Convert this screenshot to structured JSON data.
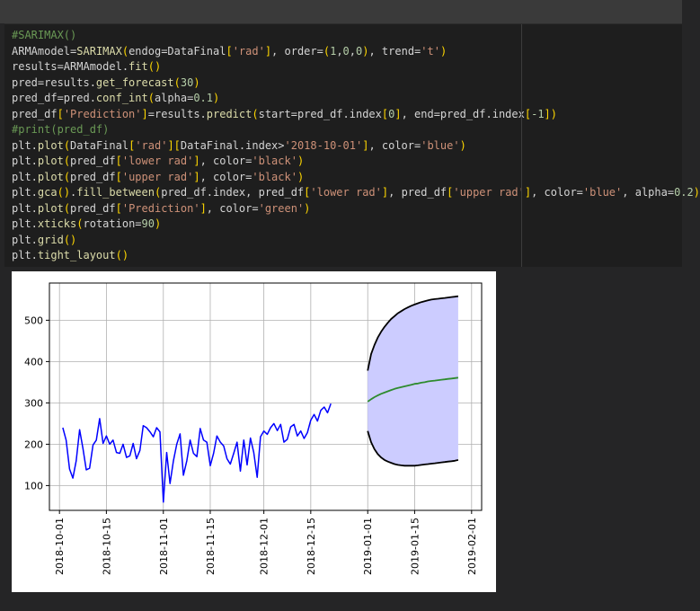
{
  "code_cell": {
    "lines": [
      [
        {
          "t": "#SARIMAX()",
          "c": "comment"
        }
      ],
      [
        {
          "t": "ARMAmodel",
          "c": "var"
        },
        {
          "t": "=",
          "c": "var"
        },
        {
          "t": "SARIMAX",
          "c": "fn"
        },
        {
          "t": "(",
          "c": "br"
        },
        {
          "t": "endog=DataFinal",
          "c": "var"
        },
        {
          "t": "[",
          "c": "br"
        },
        {
          "t": "'rad'",
          "c": "str"
        },
        {
          "t": "]",
          "c": "br"
        },
        {
          "t": ", order=",
          "c": "var"
        },
        {
          "t": "(",
          "c": "br"
        },
        {
          "t": "1",
          "c": "num"
        },
        {
          "t": ",",
          "c": "var"
        },
        {
          "t": "0",
          "c": "num"
        },
        {
          "t": ",",
          "c": "var"
        },
        {
          "t": "0",
          "c": "num"
        },
        {
          "t": ")",
          "c": "br"
        },
        {
          "t": ", trend=",
          "c": "var"
        },
        {
          "t": "'t'",
          "c": "str"
        },
        {
          "t": ")",
          "c": "br"
        }
      ],
      [
        {
          "t": "results=ARMAmodel.",
          "c": "var"
        },
        {
          "t": "fit",
          "c": "fn"
        },
        {
          "t": "()",
          "c": "br"
        }
      ],
      [
        {
          "t": "pred=results.",
          "c": "var"
        },
        {
          "t": "get_forecast",
          "c": "fn"
        },
        {
          "t": "(",
          "c": "br"
        },
        {
          "t": "30",
          "c": "num"
        },
        {
          "t": ")",
          "c": "br"
        }
      ],
      [
        {
          "t": "pred_df=pred.",
          "c": "var"
        },
        {
          "t": "conf_int",
          "c": "fn"
        },
        {
          "t": "(",
          "c": "br"
        },
        {
          "t": "alpha=",
          "c": "var"
        },
        {
          "t": "0.1",
          "c": "num"
        },
        {
          "t": ")",
          "c": "br"
        }
      ],
      [
        {
          "t": "pred_df",
          "c": "var"
        },
        {
          "t": "[",
          "c": "br"
        },
        {
          "t": "'Prediction'",
          "c": "str"
        },
        {
          "t": "]",
          "c": "br"
        },
        {
          "t": "=results.",
          "c": "var"
        },
        {
          "t": "predict",
          "c": "fn"
        },
        {
          "t": "(",
          "c": "br"
        },
        {
          "t": "start=pred_df.index",
          "c": "var"
        },
        {
          "t": "[",
          "c": "br"
        },
        {
          "t": "0",
          "c": "num"
        },
        {
          "t": "]",
          "c": "br"
        },
        {
          "t": ", end=pred_df.index",
          "c": "var"
        },
        {
          "t": "[",
          "c": "br"
        },
        {
          "t": "-1",
          "c": "num"
        },
        {
          "t": "]",
          "c": "br"
        },
        {
          "t": ")",
          "c": "br"
        }
      ],
      [
        {
          "t": "#print(pred_df)",
          "c": "comment"
        }
      ],
      [
        {
          "t": "plt.",
          "c": "var"
        },
        {
          "t": "plot",
          "c": "fn"
        },
        {
          "t": "(",
          "c": "br"
        },
        {
          "t": "DataFinal",
          "c": "var"
        },
        {
          "t": "[",
          "c": "br"
        },
        {
          "t": "'rad'",
          "c": "str"
        },
        {
          "t": "]",
          "c": "br"
        },
        {
          "t": "[",
          "c": "br"
        },
        {
          "t": "DataFinal.index>",
          "c": "var"
        },
        {
          "t": "'2018-10-01'",
          "c": "str"
        },
        {
          "t": "]",
          "c": "br"
        },
        {
          "t": ", color=",
          "c": "var"
        },
        {
          "t": "'blue'",
          "c": "str"
        },
        {
          "t": ")",
          "c": "br"
        }
      ],
      [
        {
          "t": "plt.",
          "c": "var"
        },
        {
          "t": "plot",
          "c": "fn"
        },
        {
          "t": "(",
          "c": "br"
        },
        {
          "t": "pred_df",
          "c": "var"
        },
        {
          "t": "[",
          "c": "br"
        },
        {
          "t": "'lower rad'",
          "c": "str"
        },
        {
          "t": "]",
          "c": "br"
        },
        {
          "t": ", color=",
          "c": "var"
        },
        {
          "t": "'black'",
          "c": "str"
        },
        {
          "t": ")",
          "c": "br"
        }
      ],
      [
        {
          "t": "plt.",
          "c": "var"
        },
        {
          "t": "plot",
          "c": "fn"
        },
        {
          "t": "(",
          "c": "br"
        },
        {
          "t": "pred_df",
          "c": "var"
        },
        {
          "t": "[",
          "c": "br"
        },
        {
          "t": "'upper rad'",
          "c": "str"
        },
        {
          "t": "]",
          "c": "br"
        },
        {
          "t": ", color=",
          "c": "var"
        },
        {
          "t": "'black'",
          "c": "str"
        },
        {
          "t": ")",
          "c": "br"
        }
      ],
      [
        {
          "t": "plt.",
          "c": "var"
        },
        {
          "t": "gca",
          "c": "fn"
        },
        {
          "t": "()",
          "c": "br"
        },
        {
          "t": ".",
          "c": "var"
        },
        {
          "t": "fill_between",
          "c": "fn"
        },
        {
          "t": "(",
          "c": "br"
        },
        {
          "t": "pred_df.index, pred_df",
          "c": "var"
        },
        {
          "t": "[",
          "c": "br"
        },
        {
          "t": "'lower rad'",
          "c": "str"
        },
        {
          "t": "]",
          "c": "br"
        },
        {
          "t": ", pred_df",
          "c": "var"
        },
        {
          "t": "[",
          "c": "br"
        },
        {
          "t": "'upper rad'",
          "c": "str"
        },
        {
          "t": "]",
          "c": "br"
        },
        {
          "t": ", color=",
          "c": "var"
        },
        {
          "t": "'blue'",
          "c": "str"
        },
        {
          "t": ", alpha=",
          "c": "var"
        },
        {
          "t": "0.2",
          "c": "num"
        },
        {
          "t": ")",
          "c": "br"
        }
      ],
      [
        {
          "t": "plt.",
          "c": "var"
        },
        {
          "t": "plot",
          "c": "fn"
        },
        {
          "t": "(",
          "c": "br"
        },
        {
          "t": "pred_df",
          "c": "var"
        },
        {
          "t": "[",
          "c": "br"
        },
        {
          "t": "'Prediction'",
          "c": "str"
        },
        {
          "t": "]",
          "c": "br"
        },
        {
          "t": ", color=",
          "c": "var"
        },
        {
          "t": "'green'",
          "c": "str"
        },
        {
          "t": ")",
          "c": "br"
        }
      ],
      [
        {
          "t": "plt.",
          "c": "var"
        },
        {
          "t": "xticks",
          "c": "fn"
        },
        {
          "t": "(",
          "c": "br"
        },
        {
          "t": "rotation=",
          "c": "var"
        },
        {
          "t": "90",
          "c": "num"
        },
        {
          "t": ")",
          "c": "br"
        }
      ],
      [
        {
          "t": "plt.",
          "c": "var"
        },
        {
          "t": "grid",
          "c": "fn"
        },
        {
          "t": "()",
          "c": "br"
        }
      ],
      [
        {
          "t": "plt.",
          "c": "var"
        },
        {
          "t": "tight_layout",
          "c": "fn"
        },
        {
          "t": "()",
          "c": "br"
        }
      ]
    ]
  },
  "chart_data": {
    "type": "line",
    "ylim": [
      40,
      590
    ],
    "xlim": [
      "2018-09-28",
      "2019-02-04"
    ],
    "yticks": [
      100,
      200,
      300,
      400,
      500
    ],
    "xticks": [
      "2018-10-01",
      "2018-10-15",
      "2018-11-01",
      "2018-11-15",
      "2018-12-01",
      "2018-12-15",
      "2019-01-01",
      "2019-01-15",
      "2019-02-01"
    ],
    "grid": true,
    "series": [
      {
        "role": "observed",
        "color": "#0000ff",
        "start": "2018-10-02",
        "values": [
          240,
          210,
          140,
          118,
          160,
          235,
          190,
          138,
          142,
          198,
          210,
          262,
          202,
          220,
          200,
          210,
          180,
          178,
          200,
          168,
          172,
          202,
          165,
          185,
          245,
          240,
          230,
          218,
          240,
          230,
          60,
          180,
          105,
          160,
          200,
          225,
          125,
          160,
          210,
          178,
          170,
          238,
          210,
          205,
          148,
          178,
          220,
          205,
          196,
          165,
          152,
          178,
          205,
          135,
          210,
          150,
          215,
          180,
          120,
          218,
          232,
          224,
          240,
          250,
          233,
          248,
          205,
          212,
          242,
          248,
          220,
          232,
          214,
          228,
          258,
          272,
          256,
          282,
          290,
          276,
          298
        ]
      },
      {
        "role": "upper",
        "color": "#000000",
        "start": "2019-01-01",
        "values": [
          378,
          418,
          440,
          458,
          472,
          484,
          494,
          503,
          510,
          517,
          522,
          527,
          531,
          535,
          538,
          541,
          544,
          546,
          548,
          550,
          551,
          552,
          553,
          554,
          555,
          556,
          557,
          558
        ]
      },
      {
        "role": "lower",
        "color": "#000000",
        "start": "2019-01-01",
        "values": [
          232,
          205,
          188,
          176,
          168,
          162,
          158,
          155,
          152,
          150,
          149,
          148,
          148,
          148,
          148,
          149,
          150,
          151,
          152,
          153,
          154,
          155,
          156,
          157,
          158,
          159,
          160,
          162
        ]
      },
      {
        "role": "prediction",
        "color": "#2e8b2e",
        "start": "2019-01-01",
        "values": [
          303,
          309,
          314,
          318,
          322,
          325,
          328,
          331,
          334,
          336,
          338,
          340,
          342,
          344,
          346,
          347,
          349,
          350,
          352,
          353,
          354,
          355,
          356,
          357,
          358,
          359,
          360,
          361
        ]
      }
    ],
    "band_color": "#ccccff"
  }
}
